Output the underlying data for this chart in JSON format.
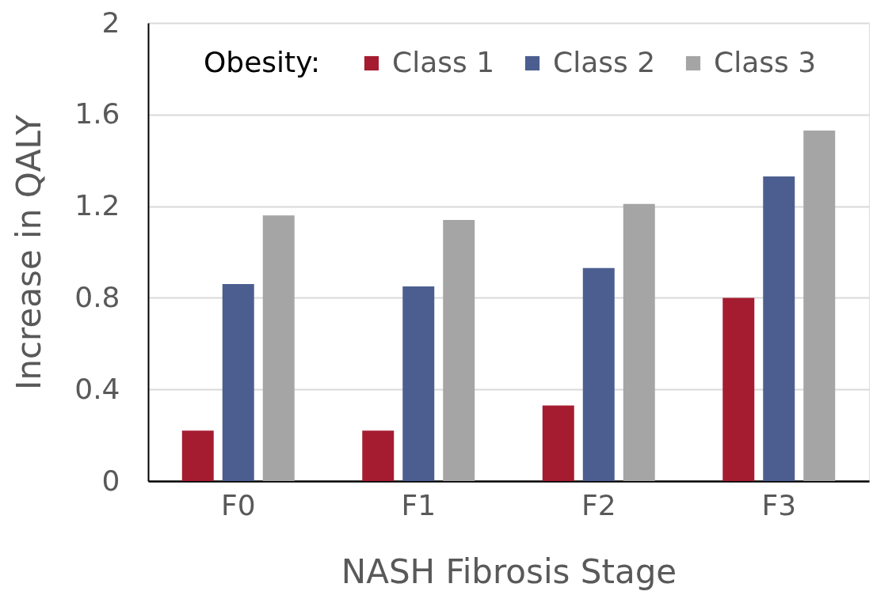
{
  "chart_data": {
    "type": "bar",
    "xlabel": "NASH Fibrosis Stage",
    "ylabel": "Increase in QALY",
    "legend_title": "Obesity:",
    "categories": [
      "F0",
      "F1",
      "F2",
      "F3"
    ],
    "series": [
      {
        "name": "Class 1",
        "color": "#a51c30",
        "values": [
          0.22,
          0.22,
          0.33,
          0.8
        ]
      },
      {
        "name": "Class 2",
        "color": "#4c5e8f",
        "values": [
          0.86,
          0.85,
          0.93,
          1.33
        ]
      },
      {
        "name": "Class 3",
        "color": "#a5a5a5",
        "values": [
          1.16,
          1.14,
          1.21,
          1.53
        ]
      }
    ],
    "ylim": [
      0,
      2
    ],
    "yticks": [
      0,
      0.4,
      0.8,
      1.2,
      1.6,
      2
    ],
    "grid": "y",
    "legend": "top"
  }
}
